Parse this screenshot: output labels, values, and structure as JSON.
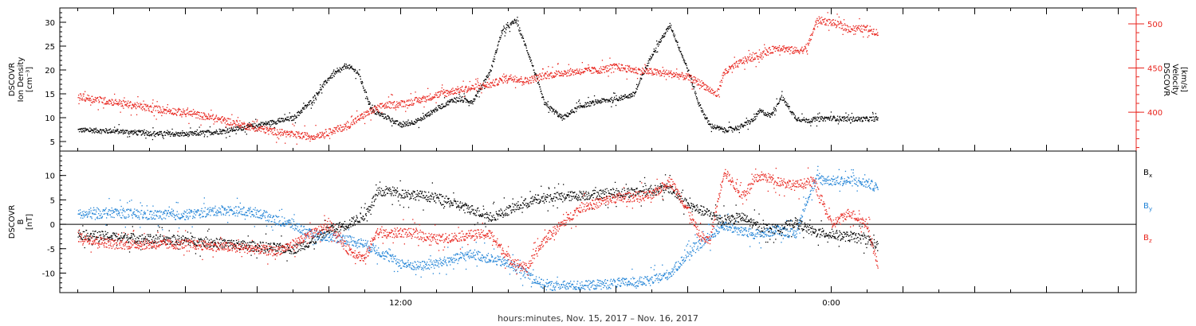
{
  "colors": {
    "black": "#000000",
    "red": "#e8231c",
    "blue": "#1f82d6",
    "axis": "#000000"
  },
  "xlabel": "hours:minutes, Nov. 15, 2017 – Nov. 16, 2017",
  "chart_data": [
    {
      "type": "scatter",
      "left_axis": {
        "label_lines": [
          "DSCOVR",
          "Ion Density",
          "[cm⁻³]"
        ],
        "ylim": [
          3,
          33
        ],
        "ticks": [
          5,
          10,
          15,
          20,
          25,
          30
        ]
      },
      "right_axis": {
        "label_lines": [
          "DSCOVR",
          "Velocity",
          "[km/s]"
        ],
        "ylim": [
          356,
          518
        ],
        "ticks": [
          400,
          450,
          500
        ]
      },
      "x_hours": [
        2.5,
        32.5
      ],
      "x_tick_labels": [
        {
          "hour": 12,
          "label": "12:00"
        },
        {
          "hour": 24,
          "label": "0:00"
        }
      ],
      "series": [
        {
          "color": "black",
          "axis": "left",
          "x": [
            3.0,
            4.0,
            5.0,
            6.0,
            7.0,
            8.0,
            9.0,
            9.5,
            10.0,
            10.5,
            10.8,
            11.0,
            11.2,
            11.6,
            12.0,
            12.5,
            13.0,
            13.5,
            14.0,
            14.5,
            14.8,
            15.2,
            15.6,
            16.0,
            16.5,
            17.0,
            17.5,
            18.0,
            18.5,
            19.0,
            19.5,
            20.0,
            20.3,
            20.6,
            21.0,
            21.4,
            21.8,
            22.0,
            22.3,
            22.6,
            23.0,
            23.3,
            23.6,
            24.0,
            24.5,
            25.0,
            25.3
          ],
          "y": [
            7.5,
            7.3,
            6.8,
            6.6,
            7.2,
            8.5,
            10.0,
            13.5,
            18.5,
            21.0,
            19.5,
            15.5,
            11.5,
            10.2,
            8.5,
            9.5,
            12.0,
            14.0,
            13.5,
            20.0,
            28.0,
            30.5,
            22.5,
            13.0,
            10.0,
            12.5,
            13.5,
            14.0,
            15.0,
            23.5,
            29.5,
            20.0,
            13.0,
            8.5,
            7.5,
            8.0,
            9.5,
            11.5,
            10.5,
            14.5,
            10.0,
            9.5,
            9.8,
            10.0,
            9.8,
            9.8,
            9.9
          ]
        },
        {
          "color": "red",
          "axis": "right",
          "x": [
            3.0,
            4.0,
            5.0,
            6.0,
            7.0,
            8.0,
            9.0,
            9.5,
            10.0,
            10.5,
            11.0,
            11.5,
            12.0,
            12.5,
            13.0,
            13.5,
            14.0,
            14.5,
            15.0,
            15.5,
            16.0,
            16.5,
            17.0,
            17.5,
            18.0,
            18.5,
            19.0,
            19.5,
            20.0,
            20.4,
            20.8,
            21.0,
            21.5,
            22.0,
            22.5,
            23.0,
            23.3,
            23.6,
            24.0,
            24.5,
            25.0,
            25.3
          ],
          "y": [
            418,
            412,
            405,
            400,
            392,
            382,
            375,
            373,
            378,
            385,
            398,
            408,
            410,
            414,
            420,
            425,
            428,
            432,
            440,
            436,
            442,
            445,
            447,
            448,
            452,
            448,
            446,
            444,
            440,
            432,
            420,
            445,
            458,
            465,
            474,
            470,
            472,
            505,
            502,
            495,
            495,
            490
          ]
        }
      ]
    },
    {
      "type": "scatter",
      "left_axis": {
        "label_lines": [
          "DSCOVR",
          "B",
          "[nT]"
        ],
        "ylim": [
          -14,
          15
        ],
        "ticks": [
          -10,
          -5,
          0,
          5,
          10
        ]
      },
      "x_hours": [
        2.5,
        32.5
      ],
      "x_tick_labels": [
        {
          "hour": 12,
          "label": "12:00"
        },
        {
          "hour": 24,
          "label": "0:00"
        }
      ],
      "legend": [
        {
          "label": "B",
          "sub": "x",
          "color": "black"
        },
        {
          "label": "B",
          "sub": "y",
          "color": "blue"
        },
        {
          "label": "B",
          "sub": "z",
          "color": "red"
        }
      ],
      "series": [
        {
          "name": "B_x",
          "color": "black",
          "x": [
            3.0,
            4.0,
            5.0,
            6.0,
            7.0,
            8.0,
            9.0,
            9.5,
            10.0,
            10.5,
            11.0,
            11.3,
            11.6,
            12.0,
            13.0,
            14.0,
            14.5,
            15.0,
            15.5,
            16.0,
            17.0,
            18.0,
            19.0,
            19.5,
            20.0,
            20.5,
            21.0,
            21.5,
            22.0,
            22.5,
            23.0,
            23.5,
            24.0,
            24.5,
            25.0,
            25.3
          ],
          "y": [
            -2.0,
            -2.5,
            -3.0,
            -3.2,
            -3.8,
            -4.5,
            -5.0,
            -3.5,
            -1.0,
            0.0,
            2.0,
            6.0,
            7.0,
            6.5,
            5.5,
            3.0,
            1.5,
            3.0,
            4.5,
            5.5,
            6.0,
            6.5,
            7.0,
            7.5,
            4.0,
            2.5,
            1.0,
            1.5,
            -0.5,
            -1.0,
            0.5,
            -1.5,
            -2.0,
            -2.5,
            -3.0,
            -4.5
          ]
        },
        {
          "name": "B_y",
          "color": "blue",
          "x": [
            3.0,
            4.0,
            5.0,
            6.0,
            7.0,
            8.0,
            8.5,
            9.0,
            9.5,
            10.0,
            10.5,
            11.0,
            11.5,
            12.0,
            12.5,
            13.0,
            14.0,
            15.0,
            15.5,
            16.0,
            17.0,
            18.0,
            19.0,
            19.5,
            20.0,
            20.5,
            21.0,
            21.5,
            22.0,
            22.5,
            23.0,
            23.3,
            23.6,
            24.0,
            24.5,
            25.0,
            25.3
          ],
          "y": [
            2.0,
            2.5,
            2.0,
            2.0,
            3.0,
            2.5,
            1.0,
            0.0,
            -2.0,
            -2.5,
            -3.0,
            -4.0,
            -6.0,
            -8.0,
            -8.5,
            -8.0,
            -6.0,
            -8.0,
            -10.0,
            -12.5,
            -12.5,
            -12.0,
            -11.5,
            -10.0,
            -6.0,
            -3.0,
            0.0,
            -1.5,
            -2.0,
            -1.0,
            -2.0,
            5.0,
            9.5,
            9.0,
            9.0,
            8.5,
            7.5
          ]
        },
        {
          "name": "B_z",
          "color": "red",
          "x": [
            3.0,
            4.0,
            5.0,
            6.0,
            7.0,
            8.0,
            8.5,
            9.0,
            9.5,
            10.0,
            10.5,
            11.0,
            11.3,
            11.6,
            12.0,
            12.5,
            13.0,
            13.5,
            14.0,
            14.5,
            15.0,
            15.5,
            16.0,
            17.0,
            18.0,
            19.0,
            19.5,
            20.0,
            20.3,
            20.6,
            21.0,
            21.5,
            22.0,
            22.5,
            23.0,
            23.5,
            24.0,
            24.5,
            25.0,
            25.3
          ],
          "y": [
            -2.5,
            -4.0,
            -4.0,
            -4.0,
            -4.5,
            -5.0,
            -5.5,
            -4.0,
            -2.0,
            0.0,
            -5.0,
            -7.0,
            -1.5,
            -2.0,
            -1.5,
            -2.0,
            -3.0,
            -2.5,
            -2.0,
            -2.0,
            -7.0,
            -9.0,
            -3.0,
            3.5,
            5.5,
            6.0,
            9.0,
            3.0,
            -2.0,
            -3.5,
            11.0,
            6.0,
            10.0,
            9.0,
            8.0,
            9.0,
            0.0,
            2.5,
            0.0,
            -9.0
          ]
        }
      ]
    }
  ]
}
